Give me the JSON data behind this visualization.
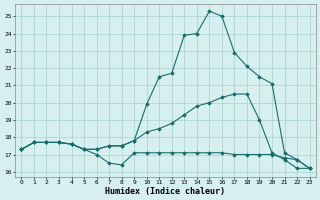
{
  "xlabel": "Humidex (Indice chaleur)",
  "xlim": [
    -0.5,
    23.5
  ],
  "ylim": [
    15.7,
    25.7
  ],
  "yticks": [
    16,
    17,
    18,
    19,
    20,
    21,
    22,
    23,
    24,
    25
  ],
  "xticks": [
    0,
    1,
    2,
    3,
    4,
    5,
    6,
    7,
    8,
    9,
    10,
    11,
    12,
    13,
    14,
    15,
    16,
    17,
    18,
    19,
    20,
    21,
    22,
    23
  ],
  "bg_color": "#d6f0f0",
  "grid_color": "#aacfcf",
  "line_color": "#1a6b6b",
  "series": [
    {
      "x": [
        0,
        1,
        2,
        3,
        4,
        5,
        6,
        7,
        8,
        9,
        10,
        11,
        12,
        13,
        14,
        15,
        16,
        17,
        18,
        19,
        20,
        21,
        22,
        23
      ],
      "y": [
        17.3,
        17.7,
        17.7,
        17.7,
        17.6,
        17.3,
        17.0,
        16.5,
        16.4,
        17.1,
        17.1,
        17.1,
        17.1,
        17.1,
        17.1,
        17.1,
        17.1,
        17.0,
        17.0,
        17.0,
        17.0,
        16.8,
        16.7,
        16.2
      ]
    },
    {
      "x": [
        0,
        1,
        2,
        3,
        4,
        5,
        6,
        7,
        8,
        9,
        10,
        11,
        12,
        13,
        14,
        15,
        16,
        17,
        18,
        19,
        20,
        21,
        22,
        23
      ],
      "y": [
        17.3,
        17.7,
        17.7,
        17.7,
        17.6,
        17.3,
        17.3,
        17.5,
        17.5,
        17.8,
        18.3,
        18.5,
        18.8,
        19.3,
        19.8,
        20.0,
        20.3,
        20.5,
        20.5,
        19.0,
        17.1,
        16.7,
        16.2,
        16.2
      ]
    },
    {
      "x": [
        0,
        1,
        2,
        3,
        4,
        5,
        6,
        7,
        8,
        9,
        10,
        11,
        12,
        13,
        14,
        15,
        16,
        17,
        18,
        19,
        20,
        21,
        22,
        23
      ],
      "y": [
        17.3,
        17.7,
        17.7,
        17.7,
        17.6,
        17.3,
        17.3,
        17.5,
        17.5,
        17.8,
        19.9,
        21.5,
        21.7,
        23.9,
        24.0,
        25.3,
        25.0,
        22.9,
        22.1,
        21.5,
        21.1,
        17.1,
        16.7,
        16.2
      ]
    }
  ]
}
